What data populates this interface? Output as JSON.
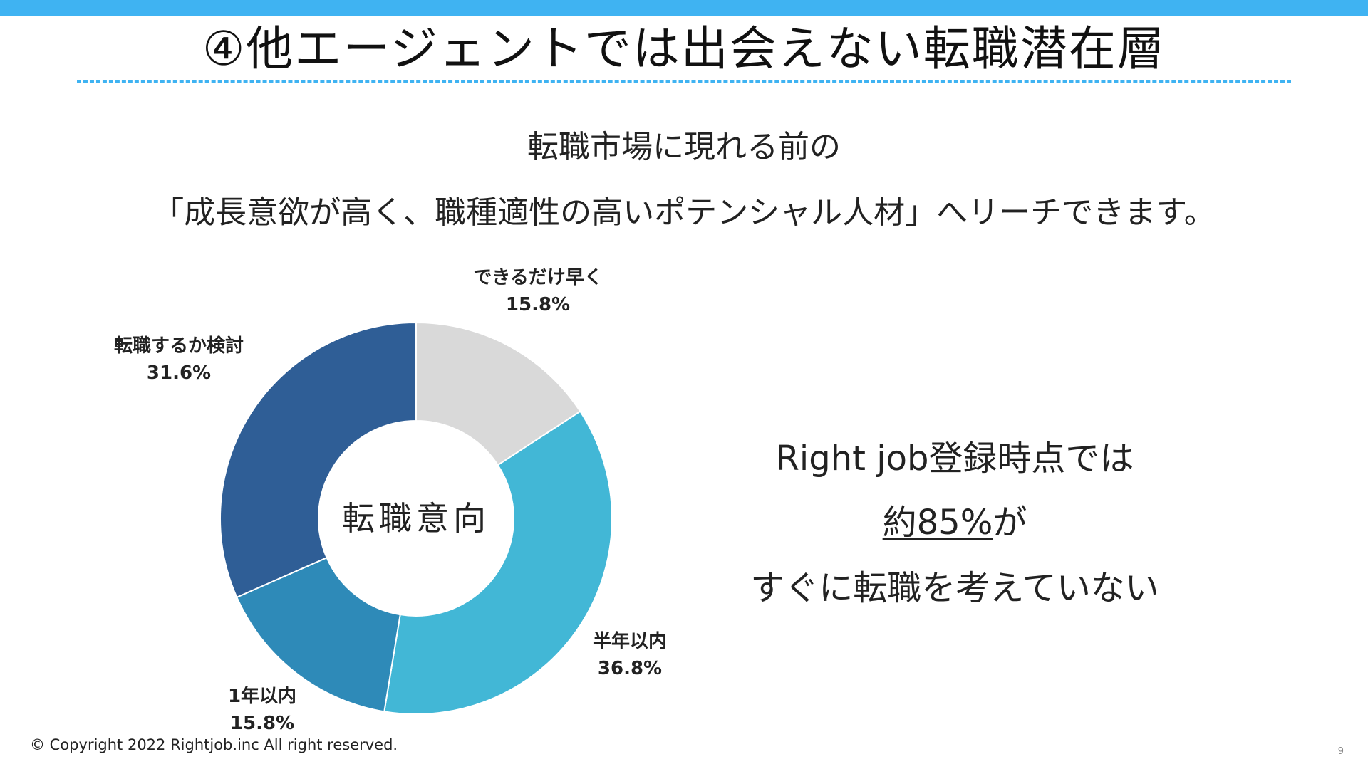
{
  "slide": {
    "title": "④他エージェントでは出会えない転職潜在層",
    "subtitle_line1": "転職市場に現れる前の",
    "subtitle_line2": "「成長意欲が高く、職種適性の高いポテンシャル人材」へリーチできます。",
    "callout": {
      "line1": "Right job登録時点では",
      "line2_highlight": "約85%",
      "line2_rest": "が",
      "line3": "すぐに転職を考えていない"
    },
    "copyright": "© Copyright 2022 Rightjob.inc All right reserved.",
    "page_number": "9"
  },
  "colors": {
    "top_bar": "#3fb3f2",
    "rule": "#3fb3f2"
  },
  "chart_data": {
    "type": "pie",
    "donut": true,
    "center_label": "転職意向",
    "start_angle_deg": 0,
    "direction": "clockwise",
    "slices": [
      {
        "label": "できるだけ早く",
        "value": 15.8,
        "value_label": "15.8%",
        "color": "#d9d9d9"
      },
      {
        "label": "半年以内",
        "value": 36.8,
        "value_label": "36.8%",
        "color": "#42b7d6"
      },
      {
        "label": "1年以内",
        "value": 15.8,
        "value_label": "15.8%",
        "color": "#2e8ab8"
      },
      {
        "label": "転職するか検討",
        "value": 31.6,
        "value_label": "31.6%",
        "color": "#2f5e96"
      }
    ]
  }
}
